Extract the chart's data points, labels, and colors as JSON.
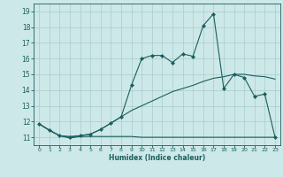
{
  "xlabel": "Humidex (Indice chaleur)",
  "xlim": [
    -0.5,
    23.5
  ],
  "ylim": [
    10.5,
    19.5
  ],
  "yticks": [
    11,
    12,
    13,
    14,
    15,
    16,
    17,
    18,
    19
  ],
  "xticks": [
    0,
    1,
    2,
    3,
    4,
    5,
    6,
    7,
    8,
    9,
    10,
    11,
    12,
    13,
    14,
    15,
    16,
    17,
    18,
    19,
    20,
    21,
    22,
    23
  ],
  "bg_color": "#cde8e8",
  "grid_color": "#aacccc",
  "line_color": "#1a5f5f",
  "series": {
    "line1_x": [
      0,
      1,
      2,
      3,
      4,
      5,
      6,
      7,
      8,
      9,
      10,
      11,
      12,
      13,
      14,
      15,
      16,
      17,
      18,
      19,
      20,
      21,
      22,
      23
    ],
    "line1_y": [
      11.85,
      11.45,
      11.1,
      10.95,
      11.05,
      11.05,
      11.05,
      11.05,
      11.05,
      11.05,
      11.0,
      11.0,
      11.0,
      11.0,
      11.0,
      11.0,
      11.0,
      11.0,
      11.0,
      11.0,
      11.0,
      11.0,
      11.0,
      11.0
    ],
    "line2_x": [
      0,
      1,
      2,
      3,
      4,
      5,
      6,
      7,
      8,
      9,
      10,
      11,
      12,
      13,
      14,
      15,
      16,
      17,
      18,
      19,
      20,
      21,
      22,
      23
    ],
    "line2_y": [
      11.85,
      11.45,
      11.1,
      11.05,
      11.1,
      11.2,
      11.5,
      11.9,
      12.3,
      12.7,
      13.0,
      13.3,
      13.6,
      13.9,
      14.1,
      14.3,
      14.55,
      14.75,
      14.85,
      15.0,
      15.0,
      14.9,
      14.85,
      14.7
    ],
    "line3_x": [
      0,
      1,
      2,
      3,
      4,
      5,
      6,
      7,
      8,
      9,
      10,
      11,
      12,
      13,
      14,
      15,
      16,
      17,
      18,
      19,
      20,
      21,
      22,
      23
    ],
    "line3_y": [
      11.85,
      11.45,
      11.1,
      11.0,
      11.1,
      11.2,
      11.5,
      11.9,
      12.3,
      14.3,
      16.0,
      16.2,
      16.2,
      15.75,
      16.3,
      16.15,
      18.1,
      18.85,
      14.1,
      15.0,
      14.8,
      13.6,
      13.75,
      11.0
    ]
  }
}
